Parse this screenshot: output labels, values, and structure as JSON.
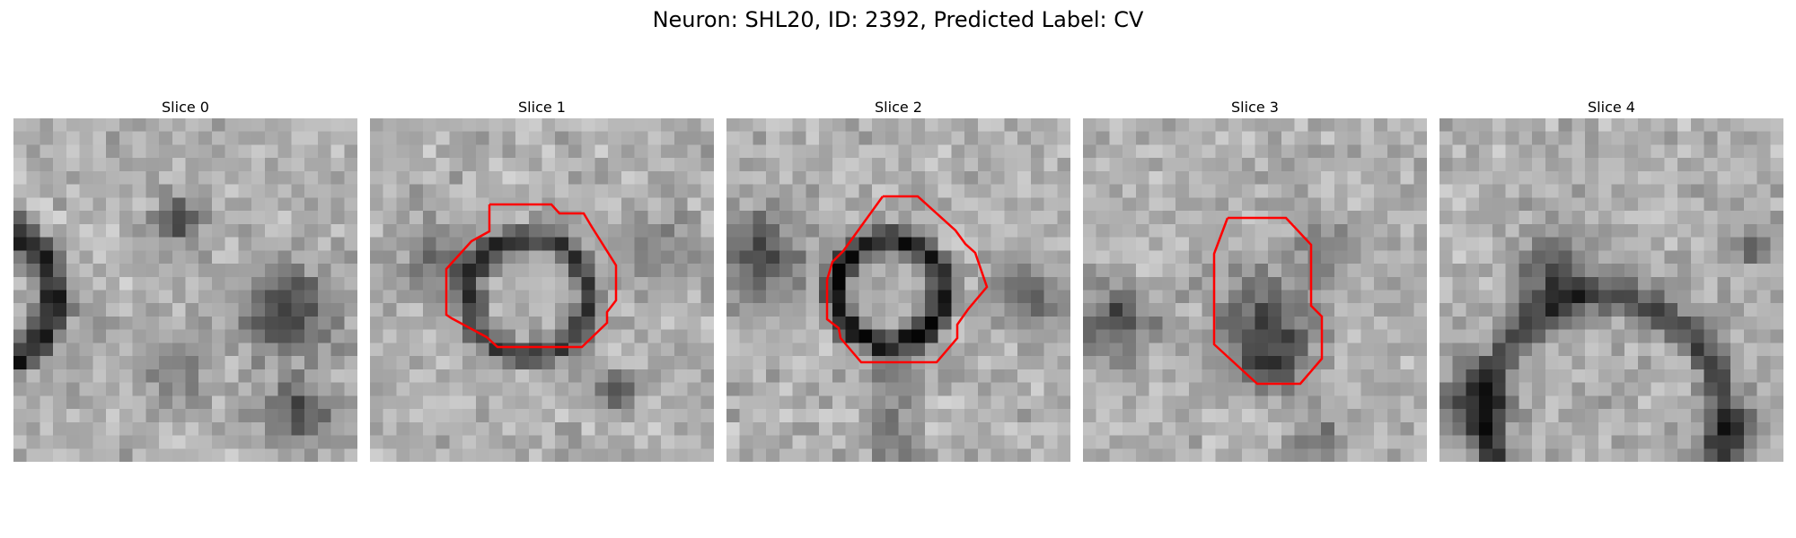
{
  "figure": {
    "title": "Neuron: SHL20, ID: 2392, Predicted Label: CV",
    "neuron": "SHL20",
    "id": 2392,
    "predicted_label": "CV"
  },
  "panels": [
    {
      "title": "Slice 0",
      "has_contour": false
    },
    {
      "title": "Slice 1",
      "has_contour": true
    },
    {
      "title": "Slice 2",
      "has_contour": true
    },
    {
      "title": "Slice 3",
      "has_contour": true
    },
    {
      "title": "Slice 4",
      "has_contour": false
    }
  ],
  "colors": {
    "contour": "#ff0000"
  }
}
